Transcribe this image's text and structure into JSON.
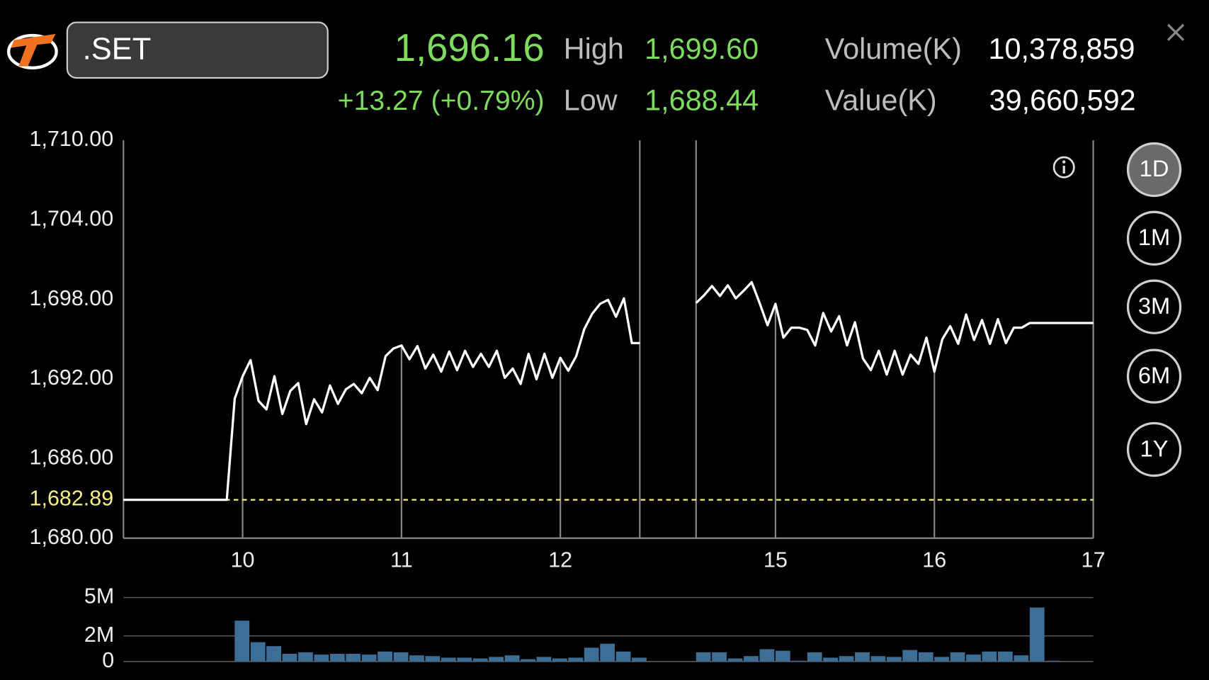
{
  "header": {
    "symbol": ".SET",
    "last": "1,696.16",
    "change": "+13.27 (+0.79%)",
    "high_label": "High",
    "high": "1,699.60",
    "low_label": "Low",
    "low": "1,688.44",
    "volume_label": "Volume(K)",
    "volume": "10,378,859",
    "value_label": "Value(K)",
    "value": "39,660,592"
  },
  "periods": [
    "1D",
    "1M",
    "3M",
    "6M",
    "1Y"
  ],
  "selected_period": "1D",
  "chart_data": [
    {
      "type": "line",
      "x": [
        9.25,
        9.9,
        9.95,
        10.0,
        10.05,
        10.1,
        10.15,
        10.2,
        10.25,
        10.3,
        10.35,
        10.4,
        10.45,
        10.5,
        10.55,
        10.6,
        10.65,
        10.7,
        10.75,
        10.8,
        10.85,
        10.9,
        10.95,
        11.0,
        11.05,
        11.1,
        11.15,
        11.2,
        11.25,
        11.3,
        11.35,
        11.4,
        11.45,
        11.5,
        11.55,
        11.6,
        11.65,
        11.7,
        11.75,
        11.8,
        11.85,
        11.9,
        11.95,
        12.0,
        12.05,
        12.1,
        12.15,
        12.2,
        12.25,
        12.3,
        12.35,
        12.4,
        12.45,
        12.5,
        13.5,
        14.5,
        14.55,
        14.6,
        14.65,
        14.7,
        14.75,
        14.8,
        14.85,
        14.9,
        14.95,
        15.0,
        15.05,
        15.1,
        15.15,
        15.2,
        15.25,
        15.3,
        15.35,
        15.4,
        15.45,
        15.5,
        15.55,
        15.6,
        15.65,
        15.7,
        15.75,
        15.8,
        15.85,
        15.9,
        15.95,
        16.0,
        16.05,
        16.1,
        16.15,
        16.2,
        16.25,
        16.3,
        16.35,
        16.4,
        16.45,
        16.5,
        16.55,
        16.6,
        17.0
      ],
      "series": [
        {
          "color": "#ffffff",
          "values": [
            1682.89,
            1682.89,
            1690.52,
            1692.21,
            1693.43,
            1690.35,
            1689.71,
            1692.21,
            1689.36,
            1691.1,
            1691.69,
            1688.6,
            1690.47,
            1689.48,
            1691.51,
            1690.12,
            1691.22,
            1691.63,
            1690.93,
            1692.09,
            1691.16,
            1693.72,
            1694.3,
            1694.53,
            1693.49,
            1694.48,
            1692.79,
            1693.84,
            1692.56,
            1694.07,
            1692.67,
            1694.13,
            1692.91,
            1693.9,
            1692.91,
            1694.13,
            1692.09,
            1692.79,
            1691.63,
            1693.9,
            1691.98,
            1693.9,
            1692.09,
            1693.6,
            1692.62,
            1693.72,
            1695.76,
            1696.92,
            1697.67,
            1697.97,
            1696.69,
            1698.08,
            1694.71,
            1694.71,
            null,
            1697.73,
            1698.31,
            1699.01,
            1698.26,
            1699.07,
            1698.08,
            1698.66,
            1699.3,
            1697.73,
            1696.05,
            1697.67,
            1695.12,
            1695.87,
            1695.87,
            1695.7,
            1694.53,
            1696.98,
            1695.58,
            1696.74,
            1694.53,
            1696.28,
            1693.55,
            1692.67,
            1694.13,
            1692.33,
            1694.13,
            1692.33,
            1693.84,
            1693.14,
            1695.12,
            1692.56,
            1695.0,
            1695.99,
            1694.65,
            1696.86,
            1694.94,
            1696.45,
            1694.65,
            1696.51,
            1694.71,
            1695.87,
            1695.87,
            1696.22,
            1696.22
          ]
        }
      ],
      "xlim": [
        9.25,
        17
      ],
      "xticks": [
        10,
        11,
        12,
        15,
        16,
        17
      ],
      "breaks": [
        12.5,
        14.5
      ],
      "ylim": [
        1680,
        1710
      ],
      "yticks": [
        {
          "value": 1680,
          "label": "1,680.00"
        },
        {
          "value": 1686,
          "label": "1,686.00"
        },
        {
          "value": 1692,
          "label": "1,692.00"
        },
        {
          "value": 1698,
          "label": "1,698.00"
        },
        {
          "value": 1704,
          "label": "1,704.00"
        },
        {
          "value": 1710,
          "label": "1,710.00"
        }
      ],
      "reference": {
        "value": 1682.89,
        "label": "1,682.89",
        "color": "#f3ee8a"
      }
    },
    {
      "type": "bar",
      "x": [
        9.95,
        10.05,
        10.15,
        10.25,
        10.35,
        10.45,
        10.55,
        10.65,
        10.75,
        10.85,
        10.95,
        11.05,
        11.15,
        11.25,
        11.35,
        11.45,
        11.55,
        11.65,
        11.75,
        11.85,
        11.95,
        12.05,
        12.15,
        12.25,
        12.35,
        12.45,
        14.5,
        14.6,
        14.7,
        14.8,
        14.9,
        15.0,
        15.1,
        15.2,
        15.3,
        15.4,
        15.5,
        15.6,
        15.7,
        15.8,
        15.9,
        16.0,
        16.1,
        16.2,
        16.3,
        16.4,
        16.5,
        16.6,
        16.7
      ],
      "values": [
        3190000,
        1510000,
        1200000,
        600000,
        720000,
        540000,
        600000,
        600000,
        540000,
        780000,
        720000,
        480000,
        420000,
        300000,
        300000,
        240000,
        360000,
        480000,
        180000,
        360000,
        240000,
        300000,
        1080000,
        1390000,
        780000,
        300000,
        720000,
        720000,
        240000,
        420000,
        960000,
        840000,
        60000,
        720000,
        300000,
        420000,
        720000,
        420000,
        360000,
        900000,
        720000,
        360000,
        720000,
        540000,
        780000,
        780000,
        480000,
        4220000,
        60000
      ],
      "bar_width": 0.1,
      "color": "#3d6e96",
      "ylim": [
        0,
        5000000
      ],
      "yticks": [
        0,
        {
          "value": 2000000,
          "label": "2M"
        },
        {
          "value": 5000000,
          "label": "5M"
        }
      ]
    }
  ]
}
